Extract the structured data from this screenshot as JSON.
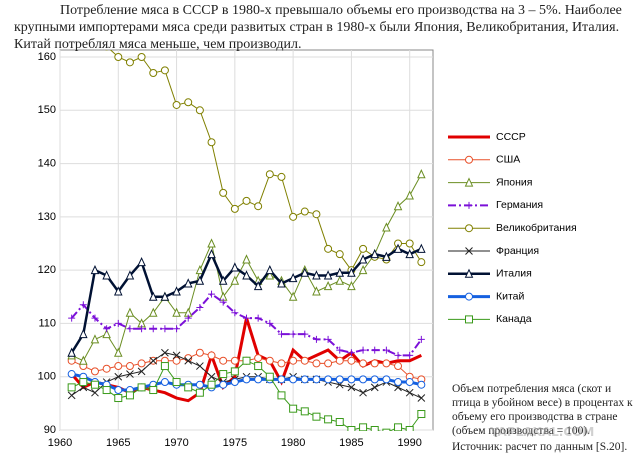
{
  "intro": "Потребление мяса в СССР в 1980-х превышало объемы его производства на 3 – 5%. Наиболее крупными импортерами мяса среди развитых стран в 1980-х были Япония, Великобритания, Италия. Китай потреблял мяса меньше, чем производил.",
  "note": "Объем потребления мяса (скот и птица в убойном весе) в процентах к объему его производства в стране (объем производства = 100).",
  "source": "Источник: расчет по данным [S.20].",
  "watermark": "YAPLAKAL.COM",
  "chart_data": {
    "type": "line",
    "x": [
      1961,
      1962,
      1963,
      1964,
      1965,
      1966,
      1967,
      1968,
      1969,
      1970,
      1971,
      1972,
      1973,
      1974,
      1975,
      1976,
      1977,
      1978,
      1979,
      1980,
      1981,
      1982,
      1983,
      1984,
      1985,
      1986,
      1987,
      1988,
      1989,
      1990,
      1991
    ],
    "xlim": [
      1960,
      1992
    ],
    "xticks": [
      1960,
      1965,
      1970,
      1975,
      1980,
      1985,
      1990
    ],
    "ylim": [
      90,
      160
    ],
    "yticks": [
      90,
      100,
      110,
      120,
      130,
      140,
      150,
      160
    ],
    "grid": true,
    "series": [
      {
        "name": "СССР",
        "color": "#e00000",
        "width": 3,
        "marker": "none",
        "values": [
          100.5,
          98,
          99,
          98.5,
          98,
          97,
          98,
          97.5,
          97,
          96,
          95.5,
          97,
          104,
          98,
          100,
          111,
          104,
          103,
          99,
          105,
          103,
          104,
          105,
          103,
          104.5,
          102,
          103,
          102.5,
          103,
          103,
          104
        ]
      },
      {
        "name": "США",
        "color": "#e8502a",
        "width": 1,
        "marker": "circle",
        "values": [
          103,
          102,
          101,
          101.5,
          102,
          102,
          102.5,
          103,
          103,
          103,
          103.5,
          104.5,
          104,
          103,
          103,
          103,
          103.5,
          103,
          102.5,
          103,
          103,
          102.5,
          102.5,
          103,
          103,
          102.5,
          102.5,
          102.5,
          102,
          100,
          99.5
        ]
      },
      {
        "name": "Япония",
        "color": "#6b8e23",
        "width": 1,
        "marker": "triangle",
        "values": [
          104,
          103,
          107,
          108,
          104.5,
          112,
          110,
          112,
          115,
          112,
          112,
          120,
          125,
          115,
          118,
          122,
          118,
          119,
          118,
          115,
          120,
          116,
          117,
          118,
          117,
          120,
          123,
          128,
          132,
          134,
          138
        ]
      },
      {
        "name": "Германия",
        "color": "#7b10d8",
        "width": 2,
        "marker": "plus",
        "dash": "8 3 2 3",
        "values": [
          111,
          113.5,
          111,
          109,
          110,
          109,
          109,
          109,
          109,
          109,
          111,
          113,
          115.5,
          114,
          112,
          111,
          111,
          110,
          108,
          108,
          108,
          107,
          107,
          105,
          104.5,
          105,
          105,
          105,
          104,
          104,
          107
        ]
      },
      {
        "name": "Великобритания",
        "color": "#808000",
        "width": 1,
        "marker": "circle",
        "values": [
          null,
          null,
          null,
          162,
          160,
          159,
          160,
          157,
          157.5,
          151,
          151.5,
          150,
          144,
          134.5,
          131.5,
          133,
          132,
          138,
          137.5,
          130,
          131,
          130.5,
          124,
          123,
          120,
          124,
          122.5,
          122,
          125,
          125,
          121.5
        ]
      },
      {
        "name": "Франция",
        "color": "#222222",
        "width": 1,
        "marker": "x",
        "values": [
          96.5,
          98,
          97,
          99,
          100,
          100.5,
          101,
          103,
          104.5,
          104,
          103,
          102,
          100,
          99,
          99.5,
          100,
          100,
          99.5,
          99.5,
          100,
          99.5,
          99.5,
          99,
          98.5,
          98,
          97,
          98,
          99,
          98,
          97,
          96
        ]
      },
      {
        "name": "Италия",
        "color": "#001133",
        "width": 2.5,
        "marker": "triangle",
        "values": [
          104.5,
          108,
          120,
          119,
          116,
          119,
          121.5,
          115,
          115,
          116,
          117.5,
          118,
          123,
          118,
          120.5,
          119,
          117,
          120,
          117.5,
          118.5,
          119.5,
          119,
          119,
          119.5,
          119.5,
          122,
          123,
          122.5,
          124,
          123,
          124
        ]
      },
      {
        "name": "Китай",
        "color": "#1560e0",
        "width": 3,
        "marker": "circle",
        "values": [
          100.5,
          100,
          99,
          98.5,
          97.5,
          97.5,
          98,
          98.5,
          99,
          98.5,
          98.5,
          98.5,
          98,
          98.5,
          99,
          99.5,
          99.5,
          99.5,
          99.5,
          99.5,
          99.5,
          99.5,
          99.5,
          99.5,
          99.5,
          99.5,
          99.5,
          99.5,
          99,
          99,
          98.5
        ]
      },
      {
        "name": "Канада",
        "color": "#3a9a1a",
        "width": 1,
        "marker": "square",
        "values": [
          98,
          99,
          98.5,
          97.5,
          96,
          96.5,
          98,
          97.5,
          102,
          99,
          98,
          97,
          98.5,
          100.5,
          101,
          103,
          102,
          100,
          96.5,
          94,
          93.5,
          92.5,
          92,
          91.5,
          90,
          90.5,
          90,
          89.5,
          90.5,
          90,
          93
        ]
      }
    ]
  }
}
